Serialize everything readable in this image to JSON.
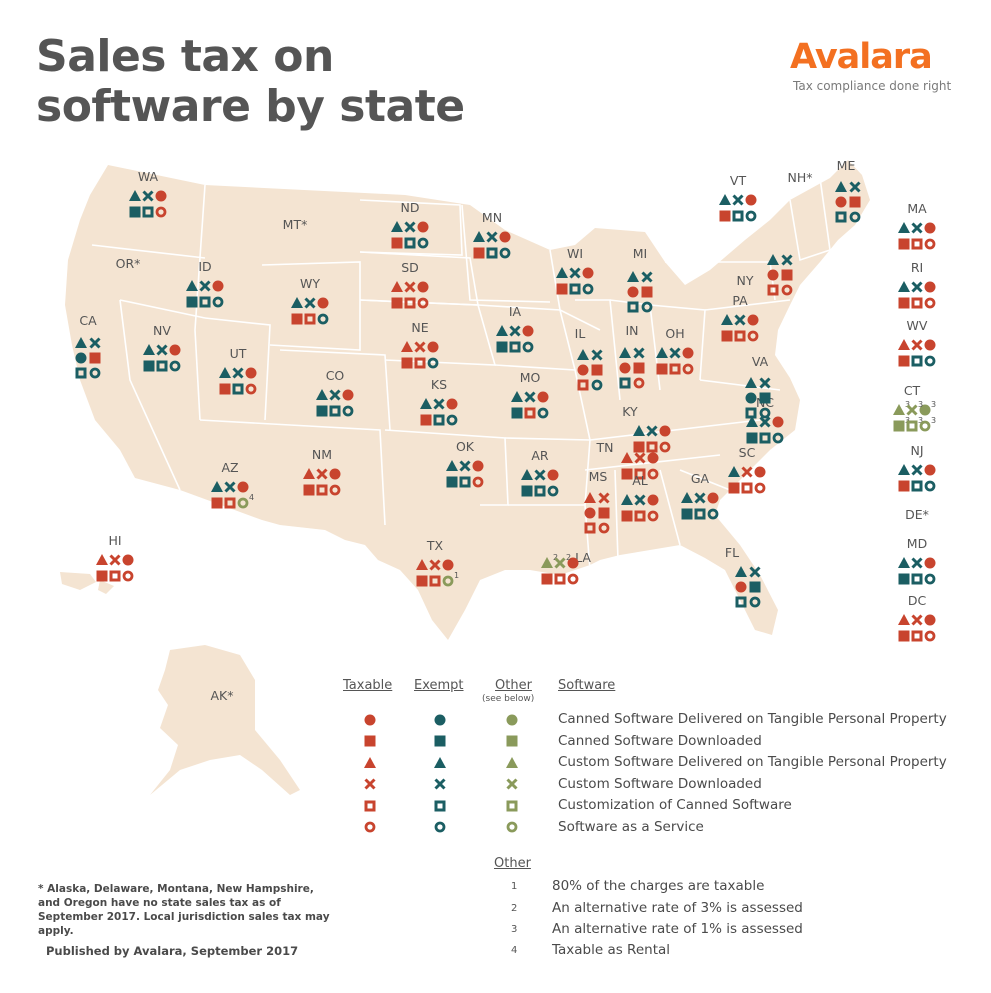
{
  "title": "Sales tax on software by state",
  "brand": {
    "name": "Avalara",
    "tagline": "Tax compliance done right"
  },
  "colors": {
    "taxable": "#c8442e",
    "exempt": "#1b5e63",
    "other": "#8a9a5b",
    "land": "#f4e4d2",
    "border": "#ffffff"
  },
  "symbol_order": [
    "Canned Software Delivered on Tangible Personal Property",
    "Canned Software Downloaded",
    "Custom Software Delivered on Tangible Personal Property",
    "Custom Software Downloaded",
    "Customization of Canned Software",
    "Software as a Service"
  ],
  "states": [
    {
      "code": "WA",
      "star": false,
      "s": [
        "T",
        "E",
        "E",
        "E",
        "E",
        "T"
      ]
    },
    {
      "code": "OR",
      "star": true,
      "s": []
    },
    {
      "code": "CA",
      "star": false,
      "s": [
        "E",
        "T",
        "E",
        "E",
        "E",
        "E"
      ]
    },
    {
      "code": "ID",
      "star": false,
      "s": [
        "T",
        "E",
        "E",
        "E",
        "E",
        "E"
      ]
    },
    {
      "code": "NV",
      "star": false,
      "s": [
        "T",
        "E",
        "E",
        "E",
        "E",
        "E"
      ]
    },
    {
      "code": "MT",
      "star": true,
      "s": []
    },
    {
      "code": "WY",
      "star": false,
      "s": [
        "T",
        "T",
        "E",
        "E",
        "T",
        "E"
      ]
    },
    {
      "code": "UT",
      "star": false,
      "s": [
        "T",
        "T",
        "E",
        "E",
        "E",
        "T"
      ]
    },
    {
      "code": "CO",
      "star": false,
      "s": [
        "T",
        "E",
        "E",
        "E",
        "E",
        "E"
      ]
    },
    {
      "code": "AZ",
      "star": false,
      "s": [
        "T",
        "T",
        "E",
        "E",
        "T",
        "O"
      ],
      "notes": {
        "5": "4"
      }
    },
    {
      "code": "NM",
      "star": false,
      "s": [
        "T",
        "T",
        "T",
        "T",
        "T",
        "T"
      ]
    },
    {
      "code": "ND",
      "star": false,
      "s": [
        "T",
        "T",
        "E",
        "E",
        "E",
        "E"
      ]
    },
    {
      "code": "SD",
      "star": false,
      "s": [
        "T",
        "T",
        "T",
        "T",
        "T",
        "T"
      ]
    },
    {
      "code": "NE",
      "star": false,
      "s": [
        "T",
        "T",
        "T",
        "T",
        "T",
        "E"
      ]
    },
    {
      "code": "KS",
      "star": false,
      "s": [
        "T",
        "T",
        "E",
        "E",
        "E",
        "E"
      ]
    },
    {
      "code": "OK",
      "star": false,
      "s": [
        "T",
        "E",
        "E",
        "E",
        "E",
        "T"
      ]
    },
    {
      "code": "TX",
      "star": false,
      "s": [
        "T",
        "T",
        "T",
        "T",
        "T",
        "O"
      ],
      "notes": {
        "5": "1"
      }
    },
    {
      "code": "MN",
      "star": false,
      "s": [
        "T",
        "T",
        "E",
        "E",
        "E",
        "E"
      ]
    },
    {
      "code": "IA",
      "star": false,
      "s": [
        "T",
        "E",
        "E",
        "E",
        "E",
        "E"
      ]
    },
    {
      "code": "MO",
      "star": false,
      "s": [
        "T",
        "E",
        "E",
        "E",
        "T",
        "E"
      ]
    },
    {
      "code": "AR",
      "star": false,
      "s": [
        "T",
        "E",
        "E",
        "E",
        "E",
        "E"
      ]
    },
    {
      "code": "LA",
      "star": false,
      "s": [
        "T",
        "T",
        "O",
        "O",
        "T",
        "T"
      ],
      "notes": {
        "2": "2",
        "3": "2"
      }
    },
    {
      "code": "WI",
      "star": false,
      "s": [
        "T",
        "T",
        "E",
        "E",
        "E",
        "E"
      ]
    },
    {
      "code": "IL",
      "star": false,
      "s": [
        "T",
        "T",
        "E",
        "E",
        "T",
        "E"
      ]
    },
    {
      "code": "MI",
      "star": false,
      "s": [
        "T",
        "T",
        "E",
        "E",
        "E",
        "E"
      ]
    },
    {
      "code": "IN",
      "star": false,
      "s": [
        "T",
        "T",
        "E",
        "E",
        "E",
        "T"
      ]
    },
    {
      "code": "OH",
      "star": false,
      "s": [
        "T",
        "T",
        "E",
        "E",
        "T",
        "T"
      ]
    },
    {
      "code": "KY",
      "star": false,
      "s": [
        "T",
        "T",
        "E",
        "E",
        "T",
        "T"
      ]
    },
    {
      "code": "TN",
      "star": false,
      "s": [
        "T",
        "T",
        "T",
        "T",
        "T",
        "T"
      ]
    },
    {
      "code": "MS",
      "star": false,
      "s": [
        "T",
        "T",
        "T",
        "T",
        "T",
        "T"
      ]
    },
    {
      "code": "AL",
      "star": false,
      "s": [
        "T",
        "T",
        "E",
        "E",
        "T",
        "T"
      ]
    },
    {
      "code": "GA",
      "star": false,
      "s": [
        "T",
        "E",
        "E",
        "E",
        "E",
        "E"
      ]
    },
    {
      "code": "FL",
      "star": false,
      "s": [
        "T",
        "E",
        "E",
        "E",
        "E",
        "E"
      ]
    },
    {
      "code": "SC",
      "star": false,
      "s": [
        "T",
        "T",
        "E",
        "T",
        "T",
        "T"
      ]
    },
    {
      "code": "NC",
      "star": false,
      "s": [
        "T",
        "E",
        "E",
        "E",
        "E",
        "E"
      ]
    },
    {
      "code": "VA",
      "star": false,
      "s": [
        "E",
        "E",
        "E",
        "E",
        "E",
        "E"
      ]
    },
    {
      "code": "PA",
      "star": false,
      "s": [
        "T",
        "T",
        "E",
        "E",
        "T",
        "T"
      ]
    },
    {
      "code": "NY",
      "star": false,
      "s": [
        "T",
        "T",
        "E",
        "E",
        "T",
        "T"
      ]
    },
    {
      "code": "WV",
      "star": false,
      "s": [
        "T",
        "T",
        "T",
        "T",
        "E",
        "E"
      ]
    },
    {
      "code": "VT",
      "star": false,
      "s": [
        "T",
        "T",
        "E",
        "E",
        "E",
        "E"
      ]
    },
    {
      "code": "NH",
      "star": true,
      "s": []
    },
    {
      "code": "ME",
      "star": false,
      "s": [
        "T",
        "T",
        "E",
        "E",
        "E",
        "E"
      ]
    },
    {
      "code": "MA",
      "star": false,
      "s": [
        "T",
        "T",
        "E",
        "E",
        "T",
        "T"
      ]
    },
    {
      "code": "RI",
      "star": false,
      "s": [
        "T",
        "T",
        "E",
        "E",
        "T",
        "T"
      ]
    },
    {
      "code": "CT",
      "star": false,
      "s": [
        "O",
        "O",
        "O",
        "O",
        "O",
        "O"
      ],
      "notes": {
        "0": "3",
        "1": "3",
        "2": "3",
        "3": "3",
        "4": "3",
        "5": "3"
      }
    },
    {
      "code": "NJ",
      "star": false,
      "s": [
        "T",
        "T",
        "E",
        "E",
        "E",
        "E"
      ]
    },
    {
      "code": "DE",
      "star": true,
      "s": []
    },
    {
      "code": "MD",
      "star": false,
      "s": [
        "T",
        "E",
        "E",
        "E",
        "E",
        "E"
      ]
    },
    {
      "code": "DC",
      "star": false,
      "s": [
        "T",
        "T",
        "T",
        "T",
        "T",
        "T"
      ]
    },
    {
      "code": "HI",
      "star": false,
      "s": [
        "T",
        "T",
        "T",
        "T",
        "T",
        "T"
      ]
    },
    {
      "code": "AK",
      "star": true,
      "s": []
    }
  ],
  "legend": {
    "col_taxable": "Taxable",
    "col_exempt": "Exempt",
    "col_other": "Other",
    "col_other_sub": "(see below)",
    "col_software": "Software",
    "rows": [
      "Canned Software Delivered on Tangible Personal Property",
      "Canned Software Downloaded",
      "Custom Software Delivered on Tangible Personal Property",
      "Custom Software Downloaded",
      "Customization of Canned Software",
      "Software as a Service"
    ]
  },
  "other_notes": {
    "heading": "Other",
    "items": [
      {
        "num": "1",
        "text": "80% of the charges are taxable"
      },
      {
        "num": "2",
        "text": "An alternative rate of 3% is assessed"
      },
      {
        "num": "3",
        "text": "An alternative rate of 1% is assessed"
      },
      {
        "num": "4",
        "text": "Taxable as Rental"
      }
    ]
  },
  "footnote": "* Alaska, Delaware, Montana, New Hampshire, and Oregon have no state sales tax as of September 2017. Local jurisdiction sales tax may apply.",
  "published": "Published by Avalara, September 2017"
}
